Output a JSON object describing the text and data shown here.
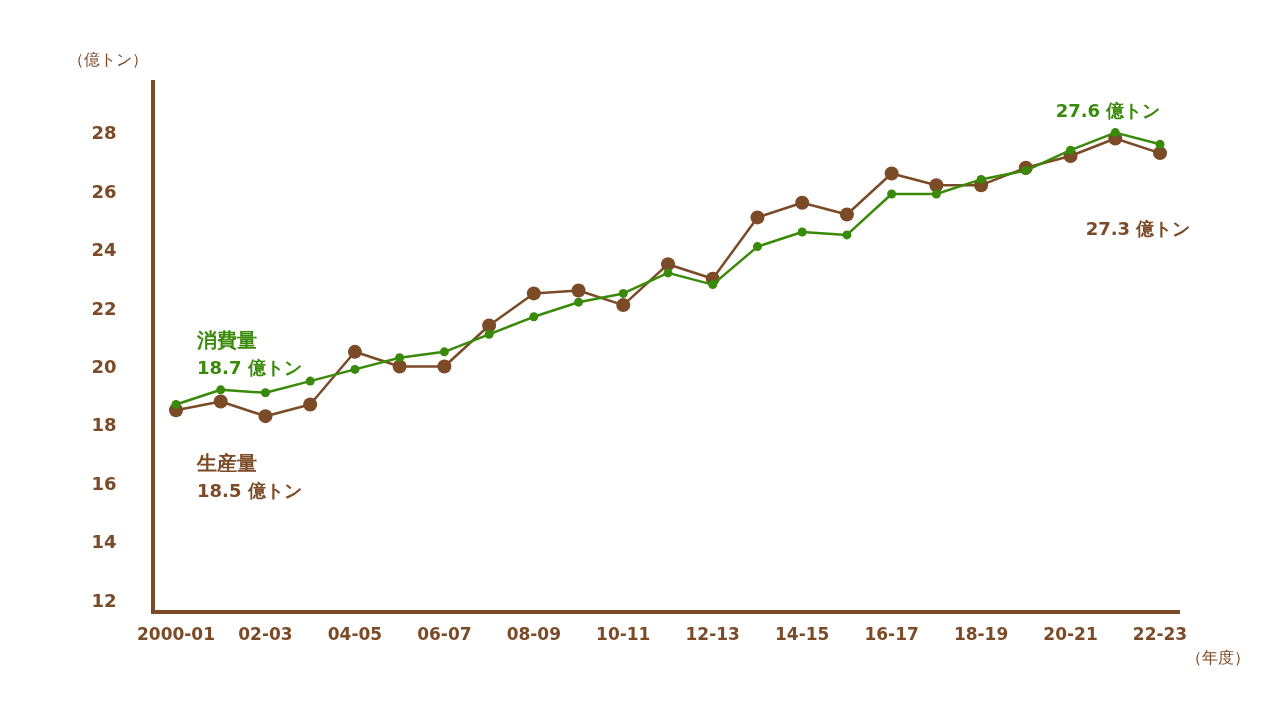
{
  "chart_data": {
    "type": "line",
    "xlabel": "（年度）",
    "ylabel": "（億トン）",
    "categories": [
      "2000-01",
      null,
      "02-03",
      null,
      "04-05",
      null,
      "06-07",
      null,
      "08-09",
      null,
      "10-11",
      null,
      "12-13",
      null,
      "14-15",
      null,
      "16-17",
      null,
      "18-19",
      null,
      "20-21",
      null,
      "22-23"
    ],
    "series": [
      {
        "name": "生産量",
        "color": "#7b4a26",
        "values": [
          18.5,
          18.8,
          18.3,
          18.7,
          20.5,
          20.0,
          20.0,
          21.4,
          22.5,
          22.6,
          22.1,
          23.5,
          23.0,
          25.1,
          25.6,
          25.2,
          26.6,
          26.2,
          26.2,
          26.8,
          27.2,
          27.8,
          27.3
        ]
      },
      {
        "name": "消費量",
        "color": "#3a8a0a",
        "values": [
          18.7,
          19.2,
          19.1,
          19.5,
          19.9,
          20.3,
          20.5,
          21.1,
          21.7,
          22.2,
          22.5,
          23.2,
          22.8,
          24.1,
          24.6,
          24.5,
          25.9,
          25.9,
          26.4,
          26.7,
          27.4,
          28.0,
          27.6
        ]
      }
    ],
    "ylim": [
      11.6,
      29.8
    ],
    "yticks": [
      12,
      14,
      16,
      18,
      20,
      22,
      24,
      26,
      28
    ],
    "annotations": [
      "18.5 億トン",
      "18.7 億トン",
      "27.3 億トン",
      "27.6 億トン"
    ],
    "marker": "circle",
    "line_style": "solid",
    "grid": false
  }
}
